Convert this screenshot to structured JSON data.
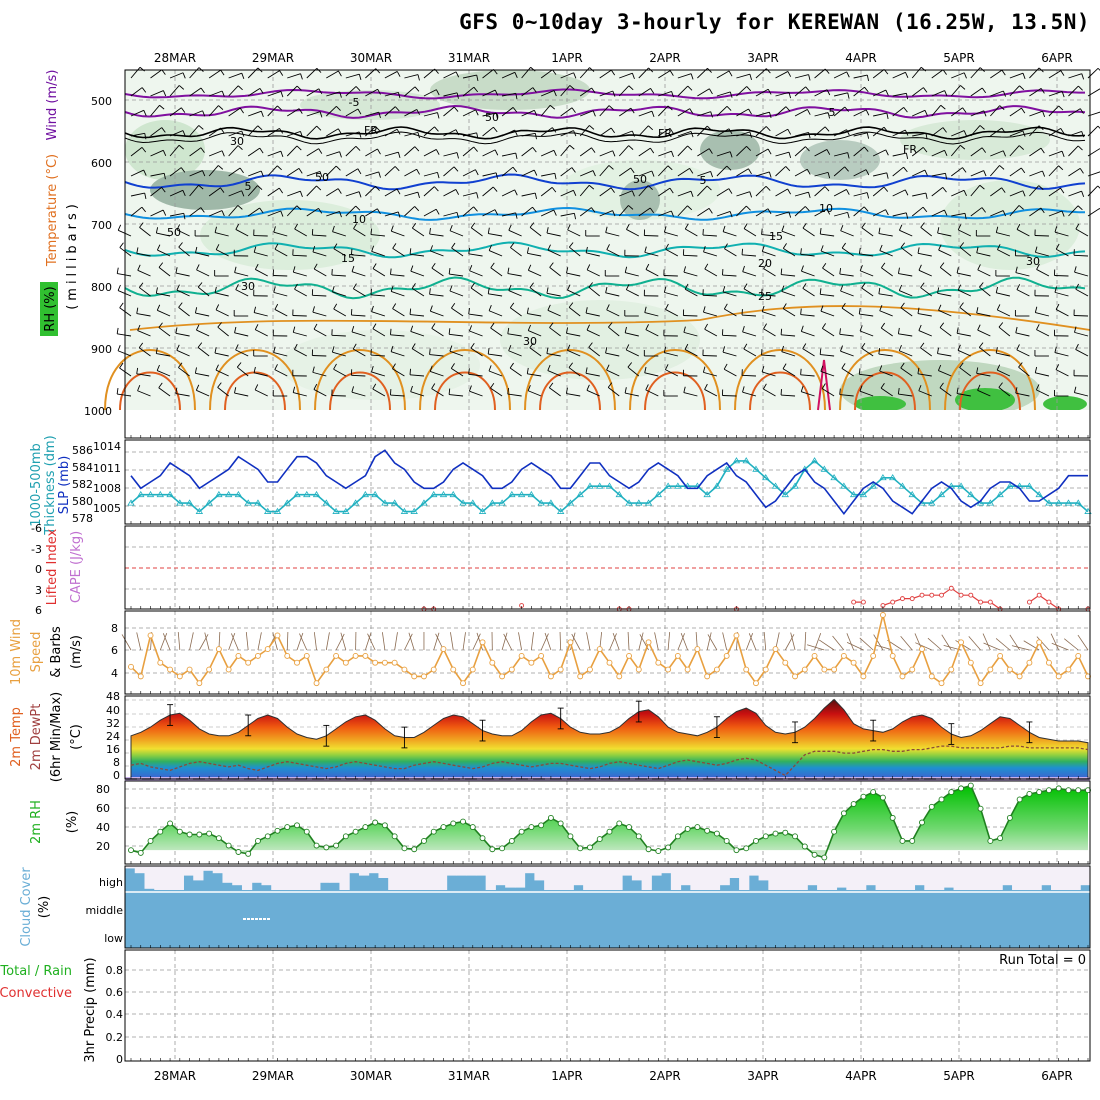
{
  "title": "GFS 0~10day 3-hourly for KEREWAN (16.25W, 13.5N)",
  "dates": [
    "28MAR",
    "29MAR",
    "30MAR",
    "31MAR",
    "1APR",
    "2APR",
    "3APR",
    "4APR",
    "5APR",
    "6APR"
  ],
  "run_total": "Run Total = 0",
  "colors": {
    "grid": "#999999",
    "cloud": "#6baed6",
    "slp": "#1030c0",
    "thick": "#20b0c0",
    "wind": "#e8a040",
    "lifted": "#e04040",
    "rh": "#20c020",
    "temp": "#e06020"
  },
  "panels": {
    "upper": {
      "ylabel": "(millibars)",
      "legend": [
        "Wind (m/s)",
        "Temperature (°C)",
        "RH (%)"
      ],
      "yticks": [
        "500",
        "600",
        "700",
        "800",
        "900",
        "1000"
      ],
      "contour_labels": [
        "-5",
        "-5",
        "FR",
        "FR",
        "FR",
        "5",
        "5",
        "10",
        "10",
        "15",
        "15",
        "20",
        "25",
        "30",
        "30",
        "30",
        "50",
        "50",
        "50",
        "50",
        "30"
      ]
    },
    "slp": {
      "legend": [
        "1000-500mb",
        "Thickness (dm)",
        "SLP (mb)"
      ],
      "left_ticks": [
        "586",
        "584",
        "582",
        "580",
        "578"
      ],
      "right_ticks": [
        "1014",
        "1011",
        "1008",
        "1005"
      ]
    },
    "lifted": {
      "legend": [
        "Lifted Index",
        "CAPE (J/kg)"
      ],
      "ticks": [
        "-6",
        "-3",
        "0",
        "3",
        "6"
      ]
    },
    "wind": {
      "legend": [
        "10m Wind",
        "Speed",
        "& Barbs"
      ],
      "unit": "(m/s)",
      "ticks": [
        "8",
        "6",
        "4"
      ]
    },
    "temp": {
      "legend": [
        "2m Temp",
        "2m DewPt",
        "(6hr Min/Max)"
      ],
      "unit": "(°C)",
      "ticks": [
        "48",
        "40",
        "32",
        "24",
        "16",
        "8",
        "0"
      ]
    },
    "rh": {
      "legend": [
        "2m RH"
      ],
      "unit": "(%)",
      "ticks": [
        "80",
        "60",
        "40",
        "20"
      ]
    },
    "cloud": {
      "legend": [
        "Cloud Cover"
      ],
      "unit": "(%)",
      "levels": [
        "high",
        "middle",
        "low"
      ]
    },
    "precip": {
      "legend": [
        "Total / Rain",
        "Convective"
      ],
      "ylabel": "3hr Precip (mm)",
      "ticks": [
        "0.8",
        "0.6",
        "0.4",
        "0.2",
        "0"
      ]
    }
  },
  "chart_data": [
    {
      "type": "line",
      "title": "SLP (mb)",
      "x_unit": "3-hourly steps",
      "ylim": [
        1003,
        1015
      ],
      "values": [
        1010,
        1008,
        1009,
        1010,
        1012,
        1011,
        1010,
        1008,
        1009,
        1010,
        1011,
        1013,
        1012,
        1011,
        1009,
        1009,
        1011,
        1013,
        1013,
        1012,
        1010,
        1009,
        1008,
        1009,
        1010,
        1013,
        1014,
        1012,
        1011,
        1009,
        1008,
        1008,
        1009,
        1011,
        1012,
        1011,
        1010,
        1008,
        1008,
        1009,
        1011,
        1012,
        1011,
        1010,
        1008,
        1008,
        1010,
        1012,
        1012,
        1010,
        1009,
        1008,
        1009,
        1011,
        1012,
        1011,
        1010,
        1008,
        1008,
        1010,
        1011,
        1012,
        1010,
        1009,
        1007,
        1005,
        1006,
        1008,
        1010,
        1011,
        1009,
        1008,
        1006,
        1004,
        1006,
        1008,
        1009,
        1008,
        1006,
        1005,
        1004,
        1006,
        1008,
        1009,
        1008,
        1006,
        1005,
        1006,
        1008,
        1009,
        1009,
        1008,
        1006,
        1006,
        1007,
        1008,
        1010,
        1010,
        1010
      ]
    },
    {
      "type": "line",
      "title": "1000-500mb Thickness (dm)",
      "ylim": [
        578,
        587
      ],
      "values": [
        580,
        581,
        581,
        581,
        581,
        580,
        580,
        579,
        580,
        581,
        581,
        581,
        580,
        580,
        579,
        579,
        580,
        581,
        581,
        581,
        580,
        579,
        579,
        580,
        581,
        581,
        580,
        580,
        579,
        579,
        580,
        581,
        581,
        581,
        580,
        580,
        579,
        580,
        580,
        581,
        581,
        581,
        580,
        580,
        579,
        580,
        581,
        582,
        582,
        582,
        581,
        580,
        580,
        580,
        581,
        582,
        582,
        582,
        582,
        581,
        582,
        584,
        585,
        585,
        584,
        583,
        582,
        581,
        582,
        584,
        585,
        584,
        583,
        582,
        581,
        581,
        582,
        583,
        583,
        582,
        581,
        580,
        580,
        581,
        582,
        582,
        581,
        580,
        580,
        581,
        582,
        582,
        582,
        581,
        580,
        580,
        580,
        580,
        579
      ]
    },
    {
      "type": "line",
      "title": "10m Wind Speed (m/s)",
      "ylim": [
        3.5,
        9
      ],
      "values": [
        5.2,
        4.5,
        7.5,
        5.5,
        5,
        4.5,
        5,
        4,
        5,
        6.5,
        5,
        6,
        5.5,
        6,
        6.5,
        7.5,
        6,
        5.5,
        6,
        4,
        5,
        6,
        5.5,
        6,
        6,
        5.5,
        5.5,
        5.5,
        5,
        4.5,
        4.5,
        5,
        6.5,
        5,
        4,
        5,
        7,
        5.5,
        4.5,
        5,
        6,
        5.5,
        6,
        4.5,
        5,
        7,
        4.5,
        5,
        6.5,
        5.5,
        4.5,
        6,
        5,
        7,
        5.5,
        5,
        6,
        5,
        6.5,
        4.5,
        5,
        6,
        7.5,
        5,
        4,
        5,
        6.5,
        5.5,
        4.5,
        5,
        6,
        5,
        5,
        6,
        5.5,
        4.5,
        6,
        9,
        6,
        4.5,
        5,
        6.5,
        4.5,
        4,
        5,
        7,
        5.5,
        4,
        5,
        6,
        5,
        4.5,
        5.5,
        7,
        5.5,
        4.5,
        5,
        6,
        4.5
      ]
    },
    {
      "type": "area",
      "title": "2m Temp (°C)",
      "ylim": [
        0,
        48
      ],
      "values": [
        25,
        27,
        30,
        34,
        37,
        38,
        34,
        29,
        26,
        25,
        25,
        27,
        31,
        35,
        37,
        35,
        30,
        26,
        24,
        23,
        25,
        29,
        33,
        36,
        37,
        34,
        29,
        25,
        24,
        24,
        27,
        31,
        35,
        37,
        36,
        32,
        28,
        26,
        25,
        25,
        28,
        33,
        37,
        38,
        35,
        30,
        27,
        26,
        26,
        27,
        30,
        35,
        39,
        40,
        36,
        30,
        27,
        26,
        25,
        27,
        30,
        35,
        39,
        41,
        38,
        31,
        27,
        26,
        27,
        30,
        35,
        41,
        46,
        40,
        32,
        29,
        28,
        27,
        29,
        33,
        36,
        37,
        35,
        30,
        26,
        24,
        25,
        28,
        32,
        36,
        35,
        31,
        27,
        24,
        23,
        22,
        22,
        22,
        21
      ]
    },
    {
      "type": "line",
      "title": "2m DewPt (°C)",
      "ylim": [
        0,
        48
      ],
      "values": [
        8,
        9,
        7,
        6,
        5,
        7,
        9,
        10,
        9,
        8,
        7,
        8,
        6,
        5,
        7,
        9,
        10,
        9,
        8,
        7,
        6,
        7,
        9,
        10,
        9,
        8,
        7,
        6,
        6,
        8,
        9,
        10,
        9,
        8,
        7,
        6,
        7,
        9,
        10,
        9,
        8,
        7,
        8,
        9,
        9,
        8,
        7,
        6,
        7,
        9,
        10,
        9,
        8,
        7,
        6,
        8,
        10,
        11,
        10,
        9,
        8,
        9,
        11,
        12,
        11,
        8,
        5,
        2,
        8,
        14,
        16,
        16,
        16,
        15,
        15,
        16,
        17,
        17,
        16,
        16,
        17,
        17,
        18,
        19,
        19,
        18,
        18,
        18,
        18,
        18,
        19,
        19,
        18,
        18,
        18,
        18,
        18,
        18,
        17
      ]
    },
    {
      "type": "area",
      "title": "2m RH (%)",
      "ylim": [
        0,
        90
      ],
      "values": [
        15,
        12,
        25,
        35,
        44,
        35,
        32,
        32,
        33,
        28,
        20,
        13,
        11,
        25,
        30,
        36,
        40,
        42,
        35,
        20,
        18,
        20,
        30,
        35,
        40,
        45,
        42,
        30,
        17,
        16,
        25,
        35,
        40,
        44,
        46,
        40,
        28,
        16,
        17,
        25,
        35,
        40,
        42,
        50,
        44,
        30,
        17,
        18,
        27,
        35,
        44,
        40,
        30,
        16,
        14,
        18,
        30,
        38,
        40,
        36,
        33,
        25,
        15,
        17,
        25,
        30,
        33,
        34,
        30,
        19,
        10,
        7,
        35,
        55,
        65,
        73,
        78,
        72,
        50,
        25,
        25,
        45,
        62,
        70,
        78,
        82,
        85,
        60,
        25,
        28,
        50,
        70,
        76,
        78,
        80,
        82,
        80,
        80,
        80
      ]
    },
    {
      "type": "bar",
      "title": "High Cloud Cover (%)",
      "ylim": [
        0,
        100
      ],
      "values": [
        90,
        70,
        5,
        0,
        0,
        0,
        60,
        40,
        80,
        70,
        30,
        20,
        0,
        30,
        20,
        0,
        0,
        0,
        0,
        0,
        30,
        30,
        0,
        70,
        60,
        70,
        50,
        0,
        0,
        0,
        0,
        0,
        0,
        60,
        60,
        60,
        60,
        0,
        20,
        10,
        10,
        70,
        40,
        0,
        0,
        0,
        20,
        0,
        0,
        0,
        0,
        60,
        40,
        0,
        60,
        70,
        0,
        20,
        0,
        0,
        0,
        20,
        50,
        0,
        60,
        40,
        0,
        0,
        0,
        0,
        20,
        0,
        0,
        10,
        0,
        0,
        20,
        0,
        0,
        0,
        0,
        20,
        0,
        0,
        10,
        0,
        0,
        0,
        0,
        0,
        20,
        0,
        0,
        0,
        20,
        0,
        0,
        0,
        20
      ]
    },
    {
      "type": "line",
      "title": "Lifted Index",
      "ylim": [
        -6,
        6
      ],
      "values": [
        null,
        null,
        null,
        null,
        null,
        null,
        null,
        null,
        null,
        null,
        null,
        null,
        null,
        null,
        null,
        null,
        null,
        null,
        null,
        null,
        null,
        null,
        null,
        null,
        null,
        null,
        null,
        null,
        null,
        null,
        6,
        6,
        null,
        null,
        null,
        null,
        null,
        null,
        null,
        null,
        5.5,
        null,
        null,
        null,
        null,
        null,
        null,
        null,
        null,
        null,
        6,
        6,
        null,
        null,
        null,
        null,
        null,
        null,
        null,
        null,
        null,
        null,
        6,
        null,
        null,
        null,
        null,
        null,
        null,
        null,
        null,
        null,
        null,
        null,
        5,
        5,
        null,
        5.5,
        5,
        4.5,
        4.5,
        4,
        4,
        4,
        3,
        4,
        4,
        5,
        5,
        6,
        null,
        null,
        5,
        4,
        5,
        6,
        null,
        null,
        6
      ]
    },
    {
      "type": "bar",
      "title": "3hr Precip (mm)",
      "ylim": [
        0,
        1
      ],
      "values": [
        0
      ]
    }
  ]
}
